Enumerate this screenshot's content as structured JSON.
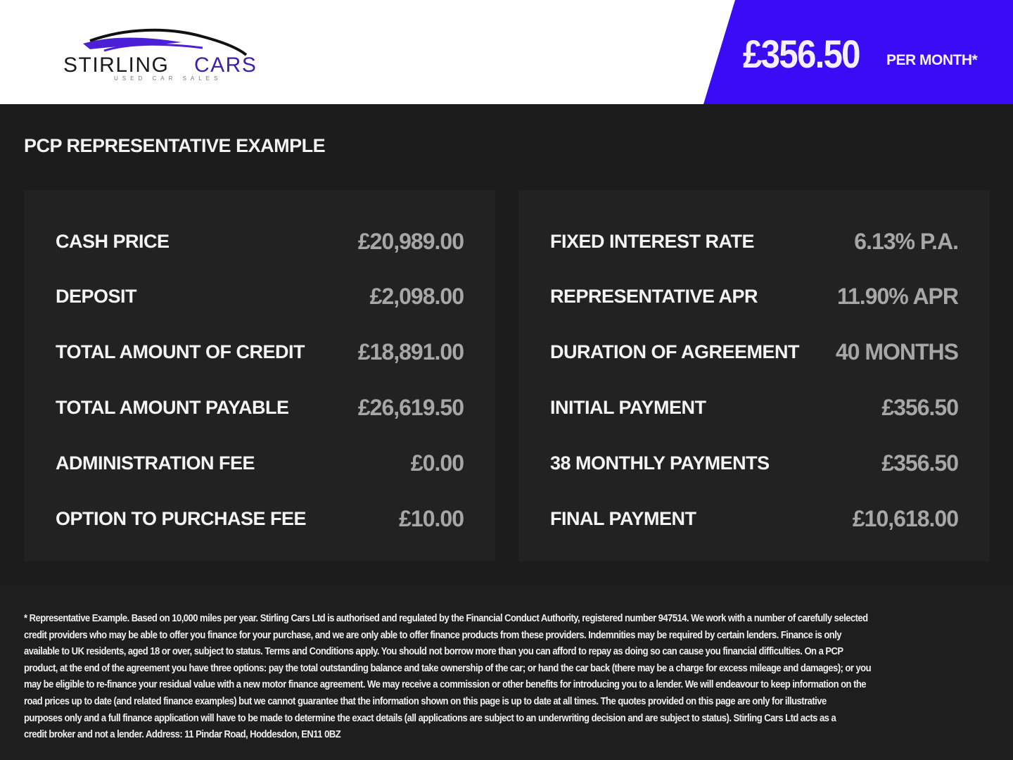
{
  "header": {
    "logo": {
      "name": "STIRLING CARS",
      "part1": "STIRLING",
      "part2": "CARS",
      "tagline": "USED CAR SALES"
    },
    "price": "£356.50",
    "price_suffix": "PER MONTH*",
    "accent_color": "#3a0cf5"
  },
  "main": {
    "title": "PCP REPRESENTATIVE EXAMPLE",
    "left": [
      {
        "label": "CASH PRICE",
        "value": "£20,989.00"
      },
      {
        "label": "DEPOSIT",
        "value": "£2,098.00"
      },
      {
        "label": "TOTAL AMOUNT OF CREDIT",
        "value": "£18,891.00"
      },
      {
        "label": "TOTAL AMOUNT PAYABLE",
        "value": "£26,619.50"
      },
      {
        "label": "ADMINISTRATION FEE",
        "value": "£0.00"
      },
      {
        "label": "OPTION TO PURCHASE FEE",
        "value": "£10.00"
      }
    ],
    "right": [
      {
        "label": "FIXED INTEREST RATE",
        "value": "6.13% P.A."
      },
      {
        "label": "REPRESENTATIVE APR",
        "value": "11.90% APR"
      },
      {
        "label": "DURATION OF AGREEMENT",
        "value": "40 MONTHS"
      },
      {
        "label": "INITIAL PAYMENT",
        "value": "£356.50"
      },
      {
        "label": "38 MONTHLY PAYMENTS",
        "value": "£356.50"
      },
      {
        "label": "FINAL PAYMENT",
        "value": "£10,618.00"
      }
    ]
  },
  "footer": {
    "lines": [
      "* Representative Example. Based on 10,000 miles per year. Stirling Cars Ltd is authorised and regulated by the Financial Conduct Authority, registered number 947514. We work with a number of carefully selected",
      "credit providers who may be able to offer you finance for your purchase, and we are only able to offer finance products from these providers. Indemnities may be required by certain lenders. Finance is only",
      "available to UK residents, aged 18 or over, subject to status. Terms and Conditions apply. You should not borrow more than you can afford to repay as doing so can cause you financial difficulties. On a PCP",
      "product, at the end of the agreement you have three options: pay the total outstanding balance and take ownership of the car; or hand the car back (there may be a charge for excess mileage and damages); or you",
      "may be eligible to re-finance your residual value with a new motor finance agreement. We may receive a commission or other benefits for introducing you to a lender. We will endeavour to keep information on the",
      "road prices up to date (and related finance examples) but we cannot guarantee that the information shown on this page is up to date at all times. The quotes provided on this page are only for illustrative",
      "purposes only and a full finance application will have to be made to determine the exact details (all applications are subject to an underwriting decision and are subject to status). Stirling Cars Ltd acts as a",
      "credit broker and not a lender. Address: 11 Pindar Road, Hoddesdon, EN11 0BZ"
    ]
  }
}
